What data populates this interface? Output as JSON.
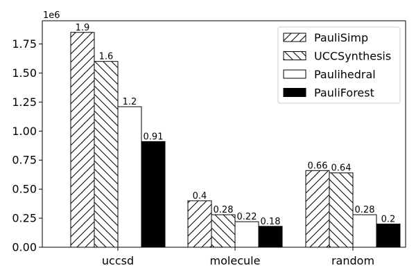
{
  "chart_data": {
    "type": "bar",
    "categories": [
      "uccsd",
      "molecule",
      "random"
    ],
    "offset_label": "1e6",
    "ylim": [
      0,
      1.95
    ],
    "yticks": [
      "0.00",
      "0.25",
      "0.50",
      "0.75",
      "1.00",
      "1.25",
      "1.50",
      "1.75"
    ],
    "yvalues": [
      0,
      0.25,
      0.5,
      0.75,
      1.0,
      1.25,
      1.5,
      1.75
    ],
    "legend_position": "top-right",
    "grid": false,
    "series": [
      {
        "name": "PauliSimp",
        "pattern": "hatch-forward",
        "values": [
          1.85,
          0.4,
          0.66
        ],
        "labels": [
          "1.9",
          "0.4",
          "0.66"
        ]
      },
      {
        "name": "UCCSynthesis",
        "pattern": "hatch-backward",
        "values": [
          1.6,
          0.28,
          0.64
        ],
        "labels": [
          "1.6",
          "0.28",
          "0.64"
        ]
      },
      {
        "name": "Paulihedral",
        "pattern": "white",
        "values": [
          1.21,
          0.22,
          0.28
        ],
        "labels": [
          "1.2",
          "0.22",
          "0.28"
        ]
      },
      {
        "name": "PauliForest",
        "pattern": "black",
        "values": [
          0.91,
          0.18,
          0.2
        ],
        "labels": [
          "0.91",
          "0.18",
          "0.2"
        ]
      }
    ]
  }
}
